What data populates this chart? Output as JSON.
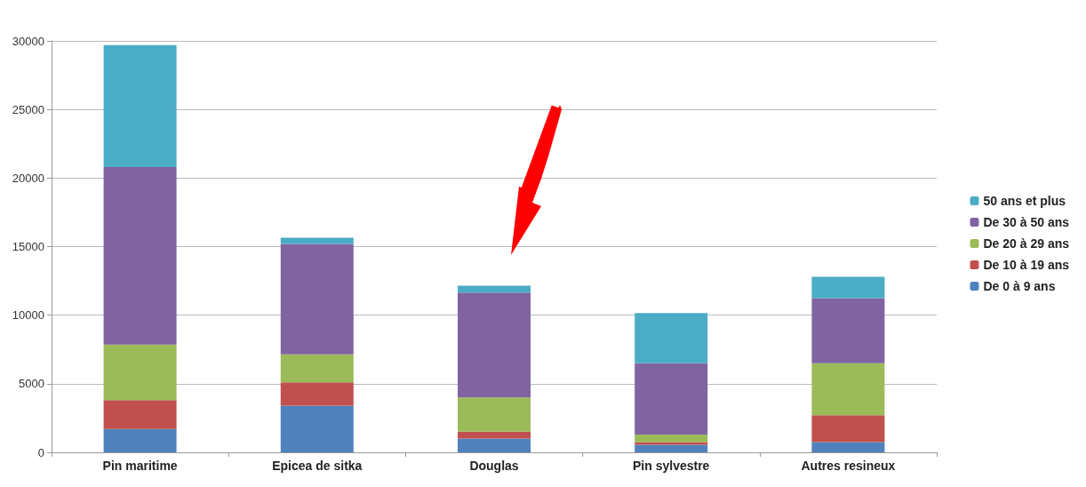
{
  "chart_data": {
    "type": "bar",
    "stacked": true,
    "categories": [
      "Pin maritime",
      "Epicea de sitka",
      "Douglas",
      "Pin sylvestre",
      "Autres resineux"
    ],
    "series": [
      {
        "name": "De 0 à 9 ans",
        "color": "#4f81bd",
        "values": [
          1700,
          3400,
          1000,
          550,
          750
        ]
      },
      {
        "name": "De 10 à 19 ans",
        "color": "#c0504d",
        "values": [
          2100,
          1700,
          500,
          200,
          1950
        ]
      },
      {
        "name": "De 20 à 29 ans",
        "color": "#9bbb59",
        "values": [
          4050,
          2050,
          2500,
          550,
          3800
        ]
      },
      {
        "name": "De 30 à 50 ans",
        "color": "#8064a2",
        "values": [
          12950,
          8050,
          7650,
          5200,
          4750
        ]
      },
      {
        "name": "50 ans et plus",
        "color": "#4bacc6",
        "values": [
          8900,
          450,
          500,
          3650,
          1550
        ]
      }
    ],
    "ylim": [
      0,
      30000
    ],
    "yticks": [
      0,
      5000,
      10000,
      15000,
      20000,
      25000,
      30000
    ],
    "grid": "y",
    "legend": "right"
  }
}
